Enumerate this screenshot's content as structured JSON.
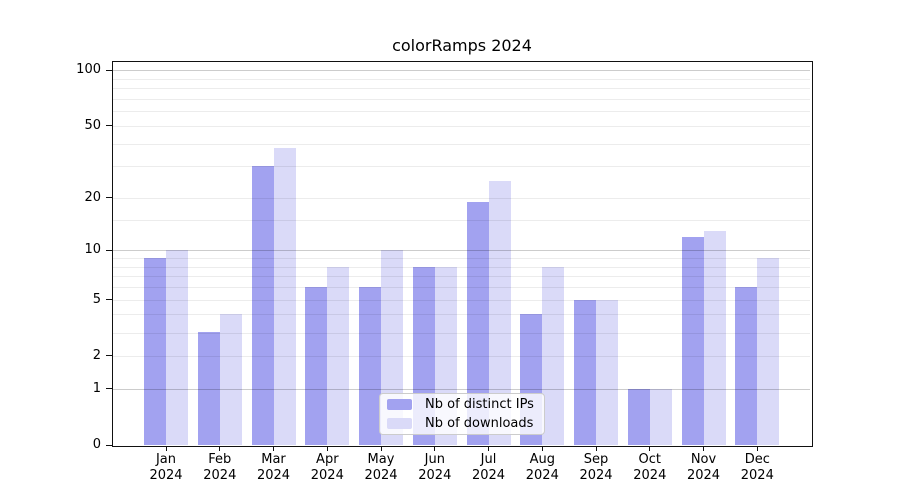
{
  "title": "colorRamps 2024",
  "legend": {
    "items": [
      {
        "label": "Nb of distinct IPs",
        "color": "#a2a2f0"
      },
      {
        "label": "Nb of downloads",
        "color": "#dadaf8"
      }
    ]
  },
  "chart_data": {
    "type": "bar",
    "title": "colorRamps 2024",
    "categories": [
      "Jan 2024",
      "Feb 2024",
      "Mar 2024",
      "Apr 2024",
      "May 2024",
      "Jun 2024",
      "Jul 2024",
      "Aug 2024",
      "Sep 2024",
      "Oct 2024",
      "Nov 2024",
      "Dec 2024"
    ],
    "series": [
      {
        "name": "Nb of distinct IPs",
        "color": "#a2a2f0",
        "values": [
          9,
          3,
          30,
          6,
          6,
          8,
          19,
          4,
          5,
          1,
          12,
          6
        ]
      },
      {
        "name": "Nb of downloads",
        "color": "#dadaf8",
        "values": [
          10,
          4,
          38,
          8,
          10,
          8,
          25,
          8,
          5,
          1,
          13,
          9
        ]
      }
    ],
    "xlabel": "",
    "ylabel": "",
    "yscale": "log1p",
    "ylim": [
      0,
      110
    ],
    "y_ticks": [
      0,
      1,
      2,
      5,
      10,
      20,
      50,
      100
    ],
    "y_minor_ticks": [
      3,
      4,
      6,
      7,
      8,
      9,
      15,
      30,
      40,
      60,
      70,
      80,
      90
    ],
    "y_emphasized_ticks": [
      1,
      10,
      100
    ],
    "grid": true,
    "grid_on_top": true,
    "legend_position": "lower center"
  }
}
